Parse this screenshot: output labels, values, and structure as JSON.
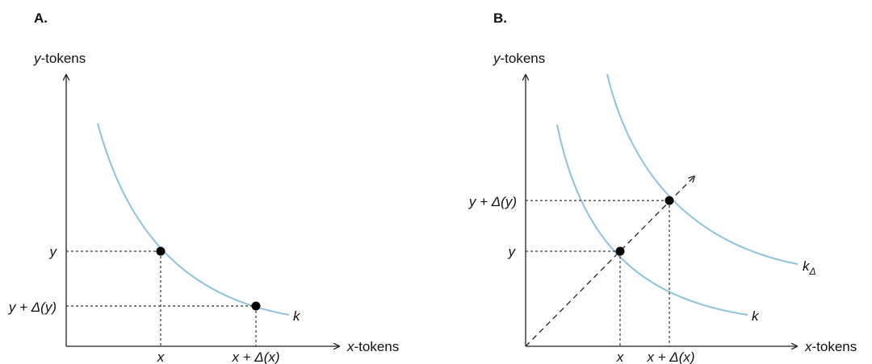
{
  "panelA": {
    "label": "A.",
    "y_axis_title": "y-tokens",
    "x_axis_title": "x-tokens",
    "y_label": "y",
    "y_delta_label": "y + Δ(y)",
    "x_label": "x",
    "x_delta_label": "x + Δ(x)",
    "curve_label": "k"
  },
  "panelB": {
    "label": "B.",
    "y_axis_title": "y-tokens",
    "x_axis_title": "x-tokens",
    "y_label": "y",
    "y_delta_label": "y + Δ(y)",
    "x_label": "x",
    "x_delta_label": "x + Δ(x)",
    "curve_label": "k",
    "curve_delta_label": "k",
    "curve_delta_subscript": "Δ"
  },
  "colors": {
    "curve": "#8cc3dd",
    "axes": "#222222",
    "points": "#000000"
  }
}
